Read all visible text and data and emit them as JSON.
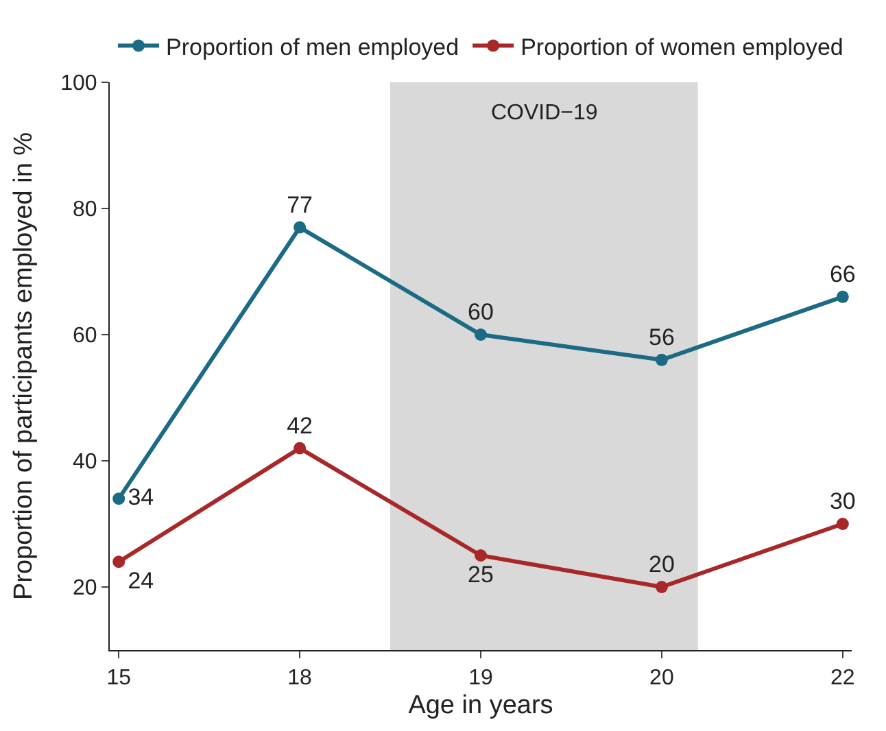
{
  "chart_data": {
    "type": "line",
    "xlabel": "Age in years",
    "ylabel": "Proportion of participants employed in %",
    "categories": [
      "15",
      "18",
      "19",
      "20",
      "22"
    ],
    "series": [
      {
        "name": "Proportion of men employed",
        "color": "#1b6b84",
        "values": [
          34,
          77,
          60,
          56,
          66
        ]
      },
      {
        "name": "Proportion of women employed",
        "color": "#a8282a",
        "values": [
          24,
          42,
          25,
          20,
          30
        ]
      }
    ],
    "ylim": [
      10,
      100
    ],
    "yticks": [
      20,
      40,
      60,
      80,
      100
    ],
    "bands": [
      {
        "axis": "x",
        "from": "19",
        "to": "20",
        "label": "COVID−19",
        "color": "#d9d9d9"
      }
    ],
    "data_labels": true,
    "marker": "circle",
    "line_style": "solid",
    "grid": false,
    "legend": "top"
  }
}
